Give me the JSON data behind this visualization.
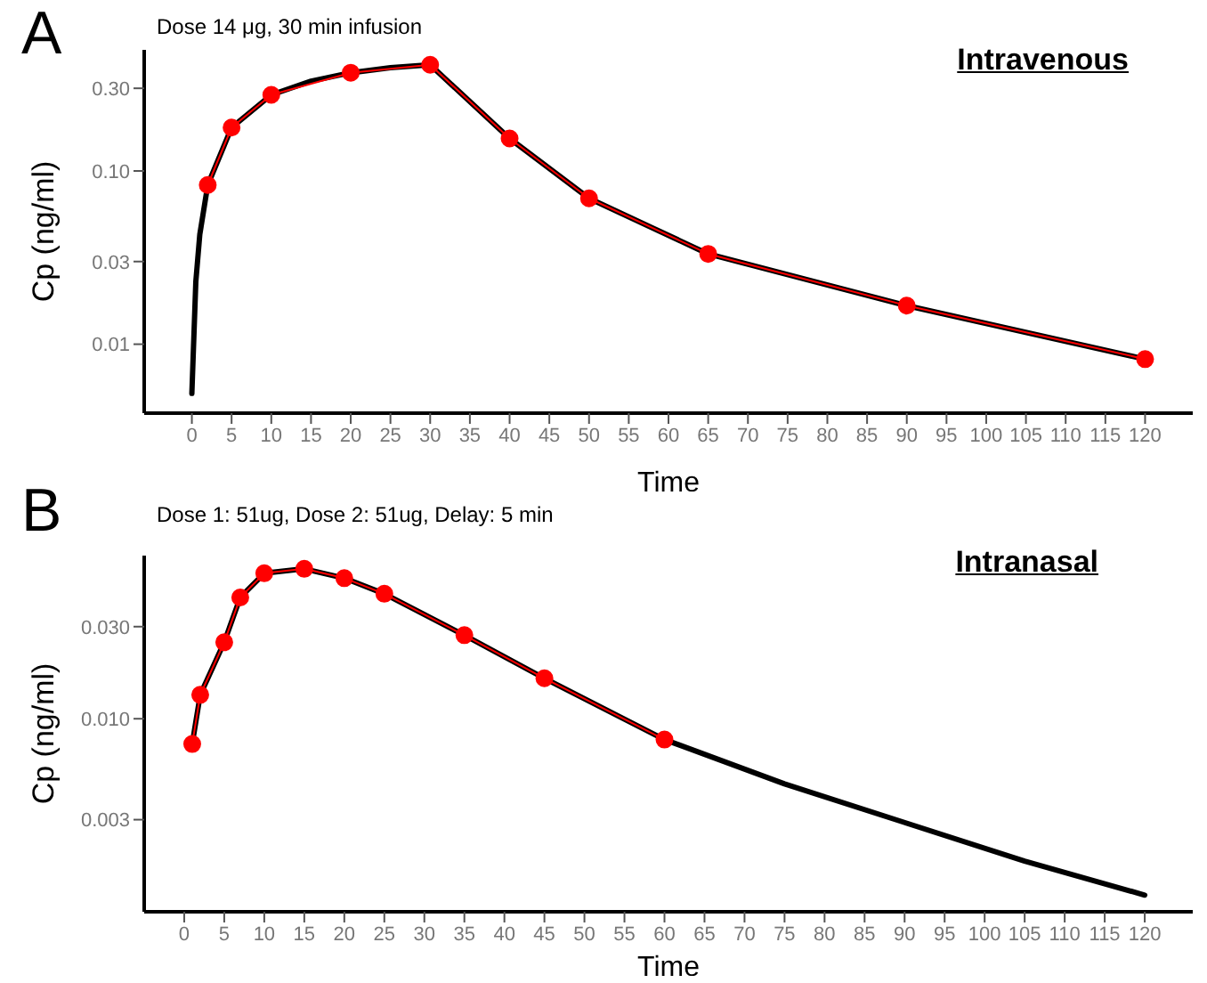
{
  "chart_data": [
    {
      "type": "line",
      "title": "Intravenous",
      "subtitle": "Dose 14 μg, 30 min infusion",
      "annotations": [
        "A"
      ],
      "xlabel": "Time",
      "ylabel": "Cp (ng/ml)",
      "log": "y",
      "xlim": [
        -6,
        126
      ],
      "xticks": [
        0,
        5,
        10,
        15,
        20,
        25,
        30,
        35,
        40,
        45,
        50,
        55,
        60,
        65,
        70,
        75,
        80,
        85,
        90,
        95,
        100,
        105,
        110,
        115,
        120
      ],
      "ylim": [
        0.004,
        0.5
      ],
      "yticks": [
        {
          "value": 0.01,
          "label": "0.01"
        },
        {
          "value": 0.03,
          "label": "0.03"
        },
        {
          "value": 0.1,
          "label": "0.10"
        },
        {
          "value": 0.3,
          "label": "0.30"
        }
      ],
      "series": [
        {
          "color": "#000000",
          "marker": "none",
          "x": [
            0,
            0.5,
            1,
            2,
            5,
            10,
            15,
            20,
            25,
            30,
            40,
            50,
            65,
            90,
            120
          ],
          "values": [
            0.0052,
            0.023,
            0.043,
            0.083,
            0.178,
            0.275,
            0.33,
            0.369,
            0.395,
            0.41,
            0.154,
            0.0695,
            0.0332,
            0.0167,
            0.0082
          ]
        },
        {
          "color": "#ff0000",
          "marker": "circle",
          "x": [
            2,
            5,
            10,
            20,
            30,
            40,
            50,
            65,
            90,
            120
          ],
          "values": [
            0.083,
            0.178,
            0.275,
            0.369,
            0.41,
            0.154,
            0.0695,
            0.0332,
            0.0167,
            0.0082
          ]
        }
      ]
    },
    {
      "type": "line",
      "title": "Intranasal",
      "subtitle": "Dose 1: 51ug, Dose 2: 51ug, Delay: 5 min",
      "annotations": [
        "B"
      ],
      "xlabel": "Time",
      "ylabel": "Cp (ng/ml)",
      "log": "y",
      "xlim": [
        -5,
        126
      ],
      "xticks": [
        0,
        5,
        10,
        15,
        20,
        25,
        30,
        35,
        40,
        45,
        50,
        55,
        60,
        65,
        70,
        75,
        80,
        85,
        90,
        95,
        100,
        105,
        110,
        115,
        120
      ],
      "ylim": [
        0.001,
        0.07
      ],
      "yticks": [
        {
          "value": 0.003,
          "label": "0.003"
        },
        {
          "value": 0.01,
          "label": "0.010"
        },
        {
          "value": 0.03,
          "label": "0.030"
        }
      ],
      "series": [
        {
          "color": "#000000",
          "marker": "none",
          "x": [
            1,
            2,
            5,
            7,
            10,
            15,
            20,
            25,
            35,
            45,
            60,
            75,
            90,
            105,
            120
          ],
          "values": [
            0.0074,
            0.0133,
            0.0249,
            0.0425,
            0.0567,
            0.0598,
            0.0535,
            0.0444,
            0.0271,
            0.0162,
            0.0078,
            0.0046,
            0.0029,
            0.00183,
            0.00122
          ]
        },
        {
          "color": "#ff0000",
          "marker": "circle",
          "x": [
            1,
            2,
            5,
            7,
            10,
            15,
            20,
            25,
            35,
            45,
            60
          ],
          "values": [
            0.0074,
            0.0133,
            0.0249,
            0.0425,
            0.0567,
            0.0598,
            0.0535,
            0.0444,
            0.0271,
            0.0162,
            0.0078
          ]
        }
      ]
    }
  ]
}
